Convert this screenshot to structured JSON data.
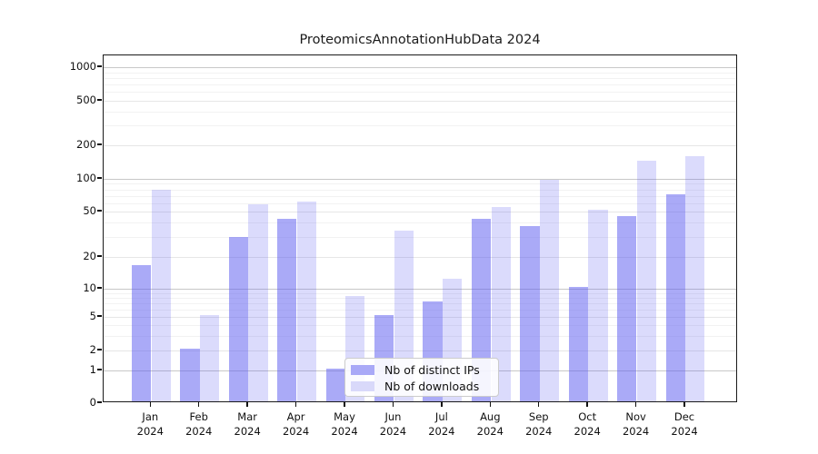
{
  "title": "ProteomicsAnnotationHubData 2024",
  "chart_data": {
    "type": "bar",
    "title": "ProteomicsAnnotationHubData 2024",
    "categories": [
      "Jan 2024",
      "Feb 2024",
      "Mar 2024",
      "Apr 2024",
      "May 2024",
      "Jun 2024",
      "Jul 2024",
      "Aug 2024",
      "Sep 2024",
      "Oct 2024",
      "Nov 2024",
      "Dec 2024"
    ],
    "series": [
      {
        "name": "Nb of distinct IPs",
        "color": "#a9a9f7",
        "fill": "rgba(85,85,240,0.50)",
        "values": [
          16,
          2,
          29,
          42,
          1,
          5,
          7,
          42,
          36,
          10,
          44,
          70
        ]
      },
      {
        "name": "Nb of downloads",
        "color": "#d9d9fa",
        "fill": "rgba(85,85,240,0.21)",
        "values": [
          77,
          5,
          56,
          60,
          8,
          33,
          12,
          53,
          94,
          50,
          140,
          155
        ]
      }
    ],
    "xlabel": "",
    "ylabel": "",
    "yscale": "symlog",
    "yticks": [
      0,
      1,
      2,
      5,
      10,
      20,
      50,
      100,
      200,
      500,
      1000
    ],
    "ylim": [
      0,
      1300
    ],
    "grid": true,
    "grid_major_color": "#c8c8c8",
    "grid_mid_color": "#e6e6e6",
    "grid_minor_color": "#f2f2f2",
    "legend_position": "lower center",
    "legend": [
      "Nb of distinct IPs",
      "Nb of downloads"
    ]
  }
}
